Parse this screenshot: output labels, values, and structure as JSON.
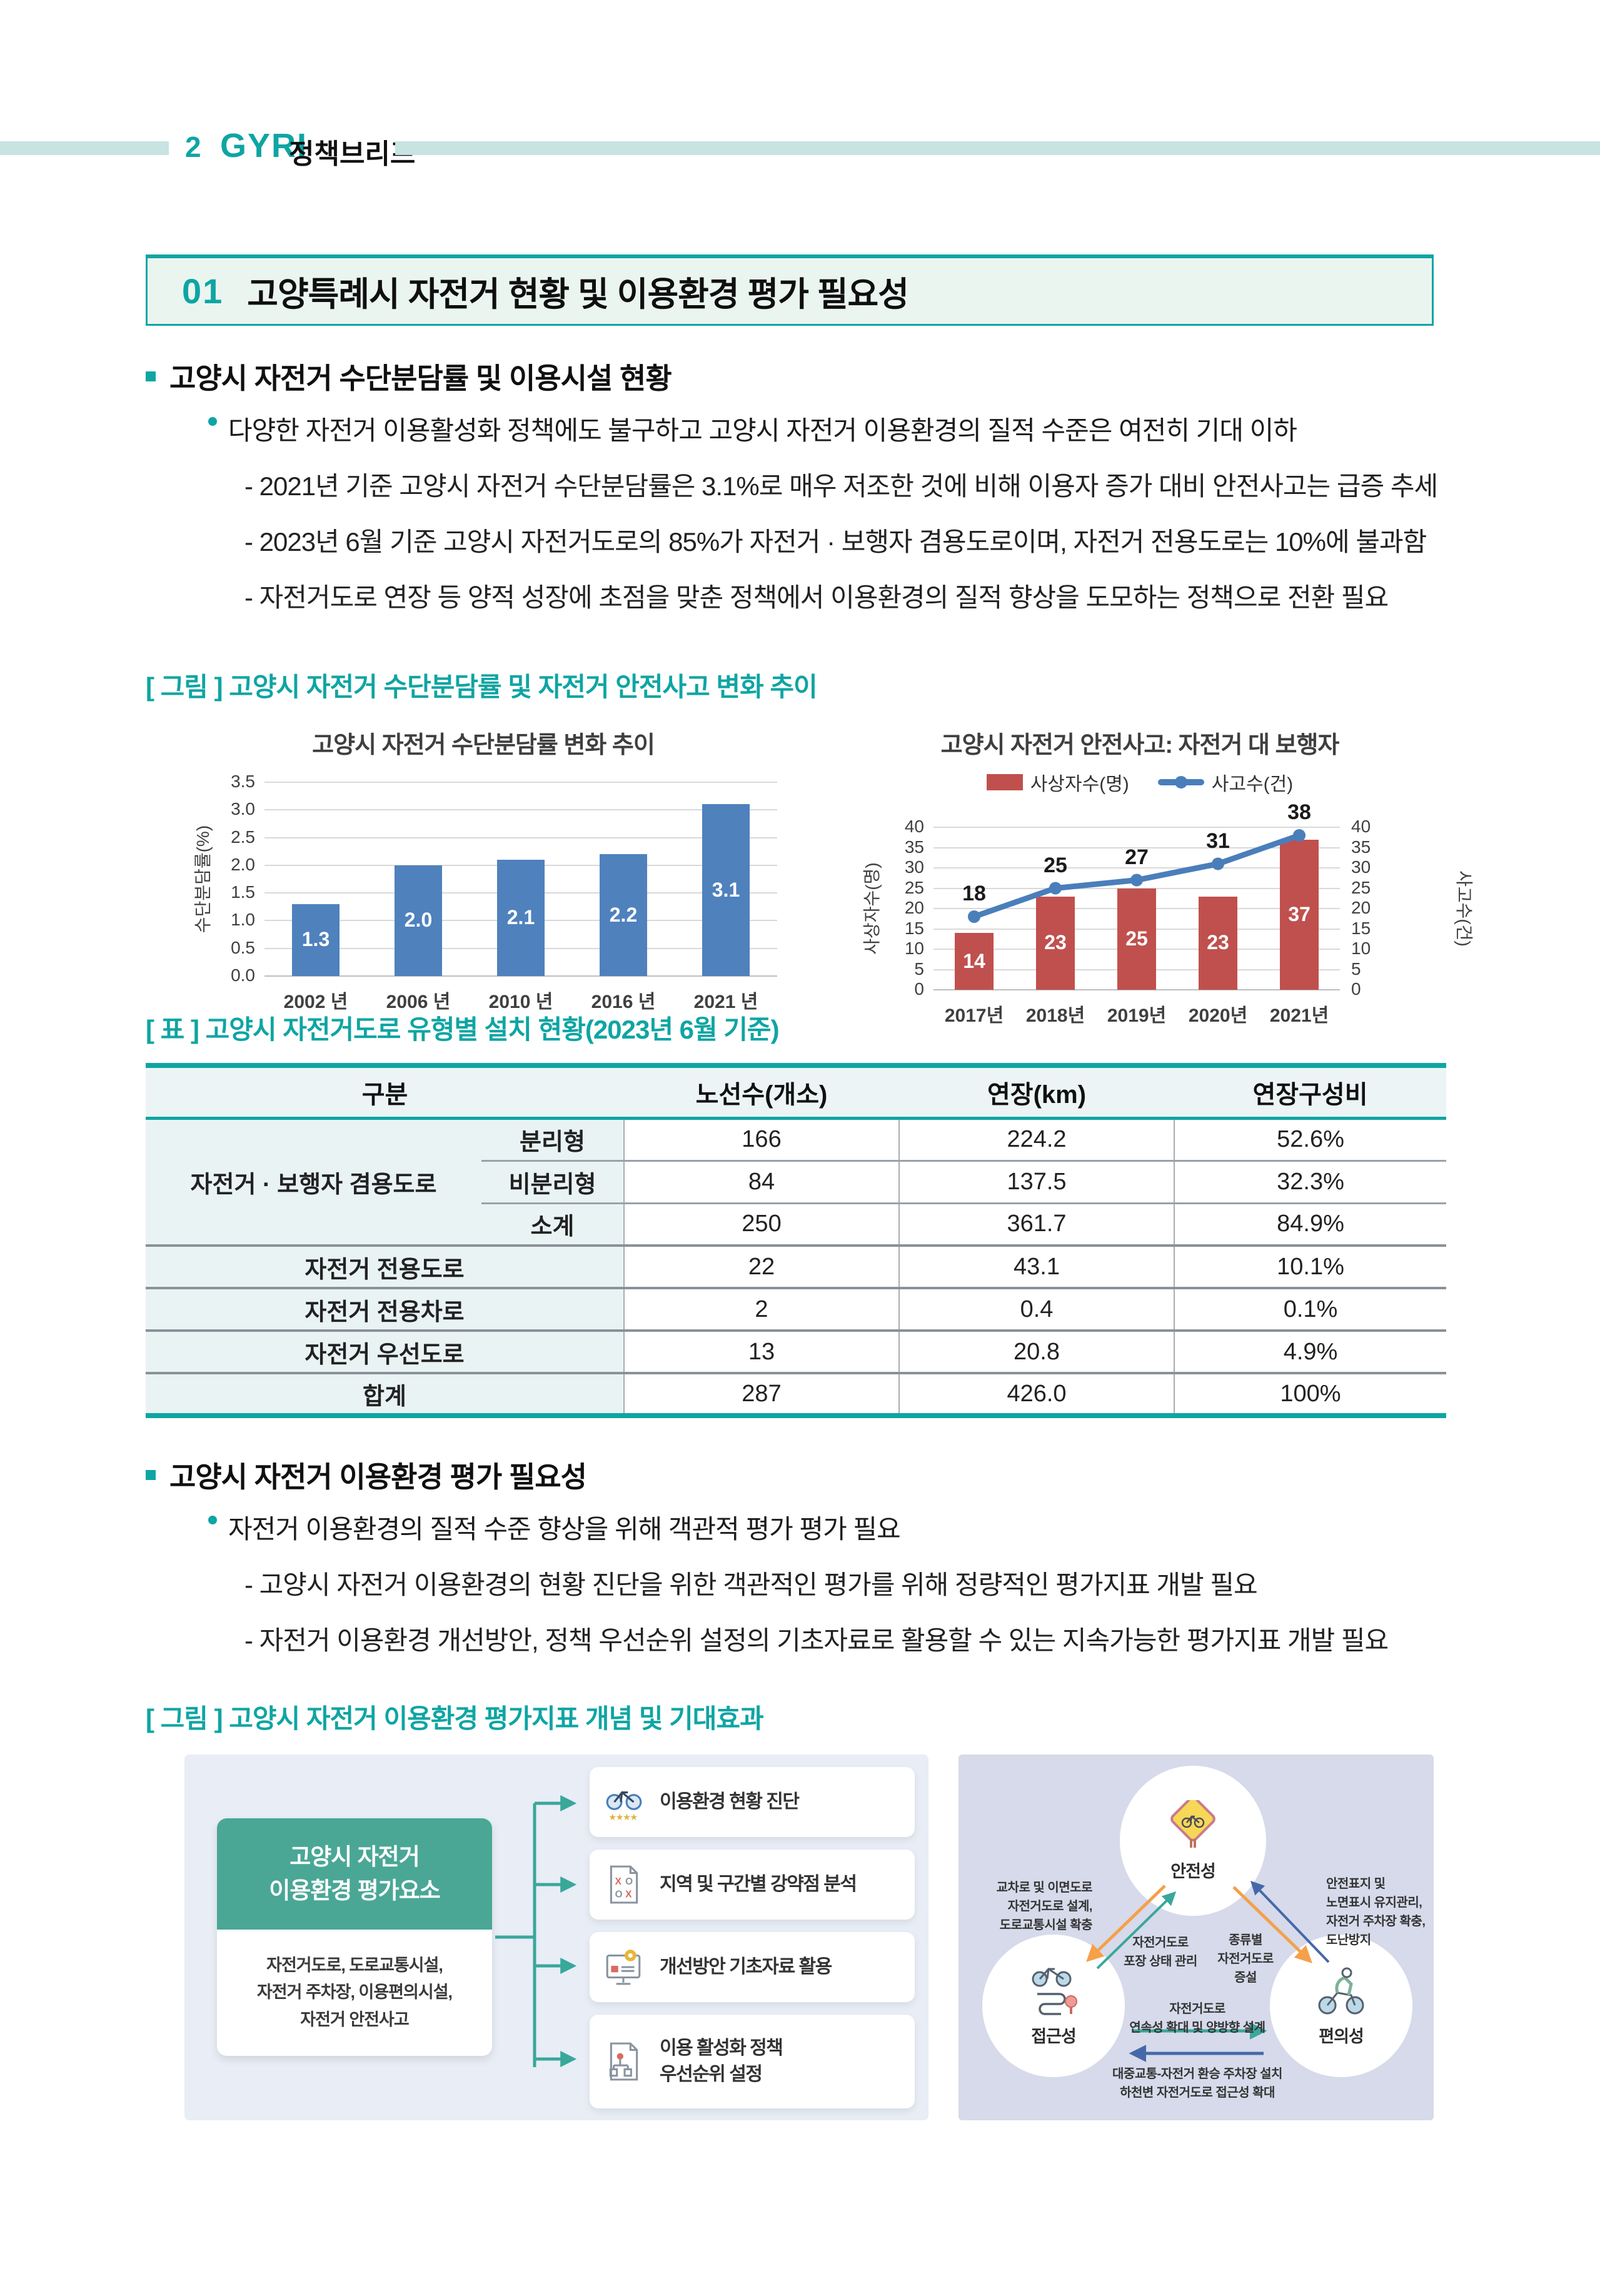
{
  "header": {
    "page_number": "2",
    "brand": "GYRI",
    "brand_suffix": "정책브리프"
  },
  "section1": {
    "number": "01",
    "title": "고양특례시 자전거 현황 및 이용환경 평가 필요성"
  },
  "block1": {
    "heading": "고양시 자전거 수단분담률 및 이용시설 현황",
    "lead": "다양한 자전거 이용활성화 정책에도 불구하고 고양시 자전거 이용환경의 질적 수준은 여전히 기대 이하",
    "items": [
      "- 2021년 기준 고양시 자전거 수단분담률은 3.1%로 매우 저조한 것에 비해 이용자 증가 대비 안전사고는 급증 추세",
      "- 2023년 6월 기준 고양시 자전거도로의 85%가 자전거 · 보행자 겸용도로이며, 자전거 전용도로는 10%에 불과함",
      "- 자전거도로 연장 등 양적 성장에 초점을 맞춘 정책에서 이용환경의 질적 향상을 도모하는 정책으로 전환 필요"
    ]
  },
  "figure1": {
    "caption": "[ 그림 ] 고양시 자전거 수단분담률 및 자전거 안전사고 변화 추이"
  },
  "chart_data": [
    {
      "type": "bar",
      "title": "고양시 자전거 수단분담률 변화 추이",
      "categories": [
        "2002 년",
        "2006 년",
        "2010 년",
        "2016 년",
        "2021 년"
      ],
      "values": [
        1.3,
        2.0,
        2.1,
        2.2,
        3.1
      ],
      "labels": [
        "1.3",
        "2.0",
        "2.1",
        "2.2",
        "3.1"
      ],
      "xlabel": "",
      "ylabel": "수단분담률(%)",
      "ylim": [
        0,
        3.5
      ],
      "ytick_step": 0.5,
      "bar_color": "#4f81bd",
      "grid": true
    },
    {
      "type": "bar-line-combo",
      "title": "고양시 자전거 안전사고: 자전거 대 보행자",
      "categories": [
        "2017년",
        "2018년",
        "2019년",
        "2020년",
        "2021년"
      ],
      "series": [
        {
          "name": "사상자수(명)",
          "type": "bar",
          "values": [
            14,
            23,
            25,
            23,
            37
          ],
          "color": "#c0504d",
          "axis": "left"
        },
        {
          "name": "사고수(건)",
          "type": "line",
          "values": [
            18,
            25,
            27,
            31,
            38
          ],
          "color": "#4a7ebb",
          "axis": "right"
        }
      ],
      "ylabel_left": "사상자수(명)",
      "ylabel_right": "사고수(건)",
      "ylim": [
        0,
        40
      ],
      "ytick_step": 5,
      "legend_position": "top",
      "grid": true
    }
  ],
  "table1": {
    "caption": "[ 표 ] 고양시 자전거도로 유형별 설치 현황(2023년 6월 기준)",
    "headers": [
      "구분",
      "노선수(개소)",
      "연장(km)",
      "연장구성비"
    ],
    "rows": [
      {
        "group": "자전거 · 보행자 겸용도로",
        "sub": "분리형",
        "routes": "166",
        "length": "224.2",
        "share": "52.6%"
      },
      {
        "sub": "비분리형",
        "routes": "84",
        "length": "137.5",
        "share": "32.3%"
      },
      {
        "sub": "소계",
        "routes": "250",
        "length": "361.7",
        "share": "84.9%"
      },
      {
        "label": "자전거 전용도로",
        "routes": "22",
        "length": "43.1",
        "share": "10.1%"
      },
      {
        "label": "자전거 전용차로",
        "routes": "2",
        "length": "0.4",
        "share": "0.1%"
      },
      {
        "label": "자전거 우선도로",
        "routes": "13",
        "length": "20.8",
        "share": "4.9%"
      },
      {
        "label": "합계",
        "routes": "287",
        "length": "426.0",
        "share": "100%"
      }
    ]
  },
  "block2": {
    "heading": "고양시 자전거 이용환경 평가 필요성",
    "lead": "자전거 이용환경의 질적 수준 향상을 위해 객관적 평가 평가 필요",
    "items": [
      "- 고양시 자전거 이용환경의 현황 진단을 위한 객관적인 평가를 위해 정량적인 평가지표 개발 필요",
      "- 자전거 이용환경 개선방안, 정책 우선순위 설정의 기초자료로 활용할 수 있는 지속가능한 평가지표 개발 필요"
    ]
  },
  "figure2": {
    "caption": "[ 그림 ] 고양시 자전거 이용환경 평가지표 개념 및 기대효과",
    "left": {
      "box_title": "고양시 자전거\n이용환경 평가요소",
      "box_body": "자전거도로, 도로교통시설,\n자전거 주차장, 이용편의시설,\n자전거 안전사고",
      "cards": [
        {
          "icon": "bicycle-rating-icon",
          "label": "이용환경 현황 진단"
        },
        {
          "icon": "ox-checklist-icon",
          "label": "지역 및 구간별 강약점 분석"
        },
        {
          "icon": "monitor-gear-icon",
          "label": "개선방안 기초자료 활용"
        },
        {
          "icon": "policy-flow-icon",
          "label": "이용 활성화 정책\n우선순위 설정"
        }
      ]
    },
    "right": {
      "nodes": [
        {
          "id": "safety",
          "label": "안전성"
        },
        {
          "id": "accessibility",
          "label": "접근성"
        },
        {
          "id": "convenience",
          "label": "편의성"
        }
      ],
      "labels": {
        "safety_access_outer": "교차로 및 이면도로\n자전거도로 설계,\n도로교통시설 확충",
        "access_safety_inner": "자전거도로\n포장 상태 관리",
        "safety_convenience_inner": "종류별\n자전거도로\n증설",
        "convenience_safety_outer": "안전표지 및\n노면표시 유지관리,\n자전거 주차장 확충,\n도난방지",
        "access_convenience": "자전거도로\n연속성 확대 및 양방향 설계",
        "convenience_access": "대중교통-자전거 환승 주차장 설치\n하천변 자전거도로 접근성 확대"
      }
    }
  },
  "colors": {
    "accent": "#0ea5a3",
    "header_bar": "#c7e3e2",
    "bar_blue": "#4f81bd",
    "bar_red": "#c0504d",
    "line_blue": "#4a7ebb",
    "teal_card": "#4aa795",
    "arrow_orange": "#f5a04a",
    "arrow_teal": "#3aa79b",
    "arrow_navy": "#4668a8"
  }
}
